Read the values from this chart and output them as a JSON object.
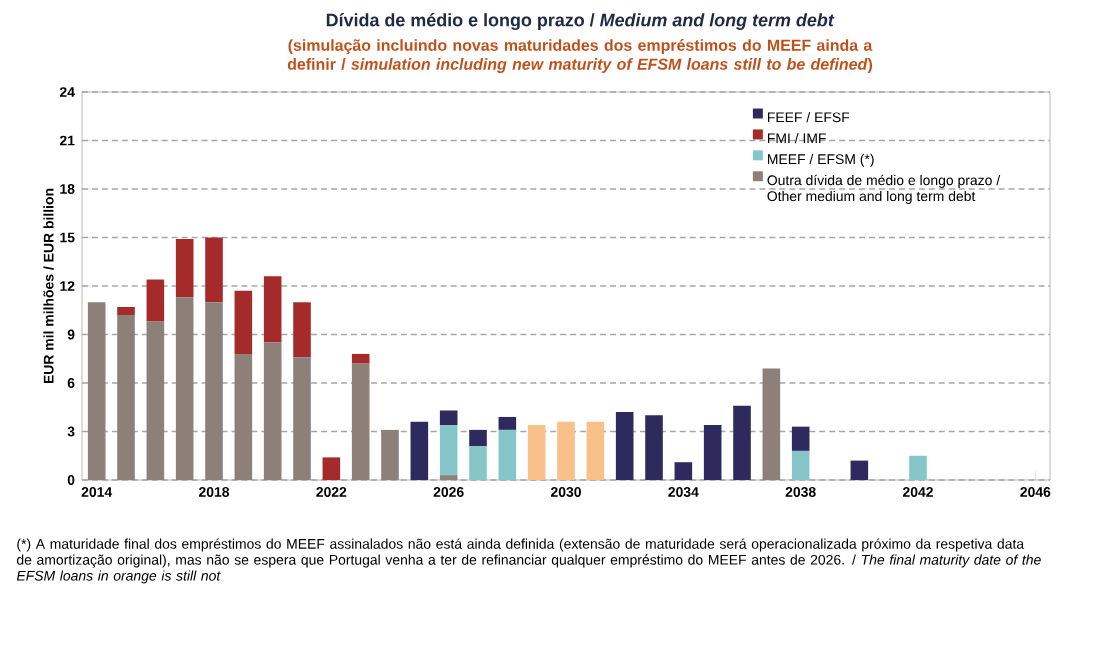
{
  "chart_data": {
    "type": "bar",
    "stacked": true,
    "title": "Dívida de médio e longo prazo / *Medium and long term debt*",
    "subtitle": "(simulação incluindo novas maturidades dos empréstimos do MEEF ainda a definir / *simulation including new maturity of EFSM loans still to be defined*)",
    "ylabel": "EUR mil milhões / EUR billion",
    "annotations": [
      "(*) A maturidade final dos empréstimos do MEEF assinalados não está ainda definida (extensão de maturidade será operacionalizada próximo da respetiva data de amortização original), mas não se espera que Portugal venha a ter de refinanciar qualquer empréstimo do MEEF antes de 2026. / *The final maturity date of the EFSM loans in orange is still not*"
    ],
    "x": [
      2014,
      2015,
      2016,
      2017,
      2018,
      2019,
      2020,
      2021,
      2022,
      2023,
      2024,
      2025,
      2026,
      2027,
      2028,
      2029,
      2030,
      2031,
      2032,
      2033,
      2034,
      2035,
      2036,
      2037,
      2038,
      2039,
      2040,
      2041,
      2042
    ],
    "xlim": [
      2013.5,
      2046.5
    ],
    "xticks": [
      2014,
      2018,
      2022,
      2026,
      2030,
      2034,
      2038,
      2042,
      2046
    ],
    "ylim": [
      0,
      24
    ],
    "yticks": [
      0,
      3,
      6,
      9,
      12,
      15,
      18,
      21,
      24
    ],
    "grid": "y",
    "legend": "top right",
    "series": [
      {
        "name": "Outra dívida de médio e longo prazo / Other medium and long term debt",
        "color": "#8c8079",
        "values": [
          11.0,
          10.2,
          9.8,
          11.3,
          11.0,
          7.8,
          8.5,
          7.6,
          null,
          7.2,
          3.1,
          null,
          0.3,
          null,
          null,
          null,
          null,
          null,
          null,
          null,
          null,
          null,
          null,
          6.9,
          null,
          null,
          null,
          null,
          null
        ]
      },
      {
        "name": "MEEF / EFSM (*)",
        "color": "#86c5c8",
        "values": [
          null,
          null,
          null,
          null,
          null,
          null,
          null,
          null,
          null,
          null,
          null,
          null,
          3.1,
          2.1,
          3.1,
          null,
          null,
          null,
          null,
          null,
          null,
          null,
          null,
          null,
          1.8,
          null,
          null,
          null,
          1.5
        ]
      },
      {
        "color": "#f9c08a",
        "values": [
          null,
          null,
          null,
          null,
          null,
          null,
          null,
          null,
          null,
          null,
          null,
          null,
          null,
          null,
          null,
          3.4,
          3.6,
          3.6,
          null,
          null,
          null,
          null,
          null,
          null,
          null,
          null,
          null,
          null,
          null
        ]
      },
      {
        "name": "FMI / IMF",
        "color": "#a52a2a",
        "values": [
          null,
          0.5,
          2.6,
          3.6,
          4.0,
          3.9,
          4.1,
          3.4,
          1.4,
          0.6,
          null,
          null,
          null,
          null,
          null,
          null,
          null,
          null,
          null,
          null,
          null,
          null,
          null,
          null,
          null,
          null,
          null,
          null,
          null
        ]
      },
      {
        "name": "FEEF / EFSF",
        "color": "#2e2a5e",
        "values": [
          null,
          null,
          null,
          null,
          null,
          null,
          null,
          null,
          null,
          null,
          null,
          3.6,
          0.9,
          1.0,
          0.8,
          null,
          null,
          null,
          4.2,
          4.0,
          1.1,
          3.4,
          4.6,
          null,
          1.5,
          null,
          1.2,
          null,
          null
        ]
      }
    ]
  }
}
